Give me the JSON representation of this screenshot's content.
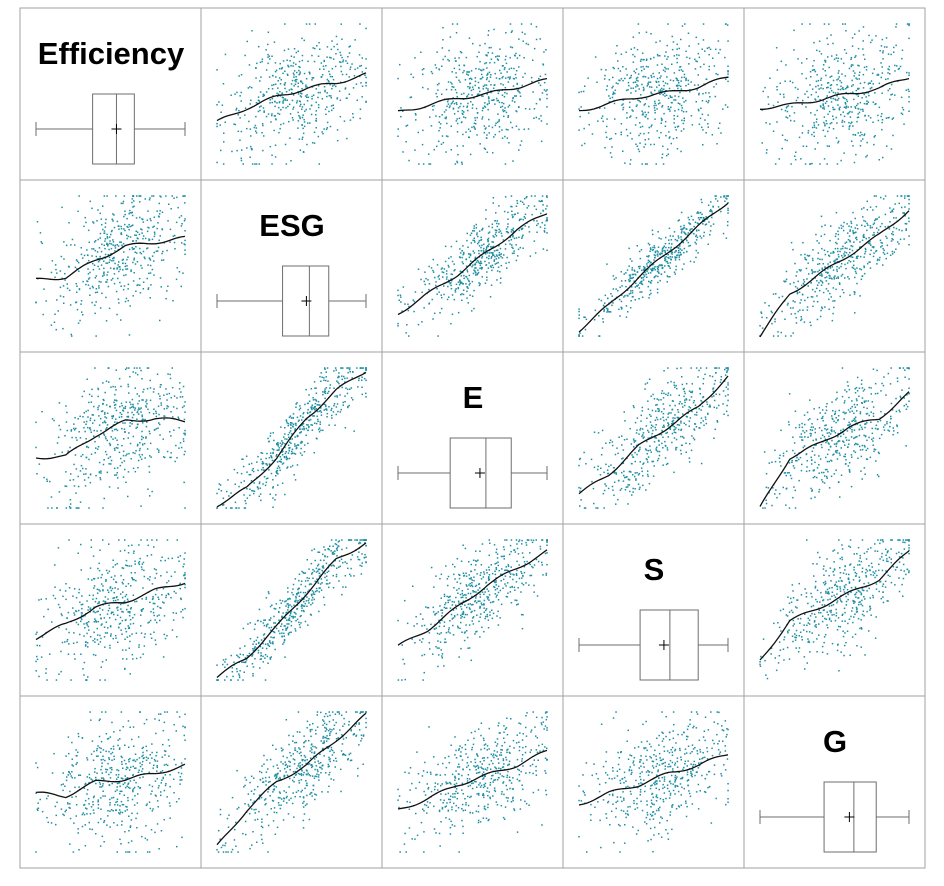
{
  "colors": {
    "point": "#1f8fa3",
    "smooth": "#111111",
    "border": "#a0a0a0",
    "box": "#6e6e6e"
  },
  "chart_data": {
    "type": "scatter",
    "layout": "scatterplot-matrix",
    "variables": [
      "Efficiency",
      "ESG",
      "E",
      "S",
      "G"
    ],
    "diagonal": "boxplot",
    "smoother": "loess",
    "grid": false,
    "value_range": [
      0,
      1
    ],
    "boxplots": [
      {
        "variable": "Efficiency",
        "min": 0.0,
        "q1": 0.38,
        "median": 0.54,
        "q3": 0.66,
        "max": 1.0,
        "mean": 0.54
      },
      {
        "variable": "ESG",
        "min": 0.0,
        "q1": 0.44,
        "median": 0.62,
        "q3": 0.75,
        "max": 1.0,
        "mean": 0.6
      },
      {
        "variable": "E",
        "min": 0.0,
        "q1": 0.35,
        "median": 0.59,
        "q3": 0.76,
        "max": 1.0,
        "mean": 0.55
      },
      {
        "variable": "S",
        "min": 0.0,
        "q1": 0.41,
        "median": 0.61,
        "q3": 0.8,
        "max": 1.0,
        "mean": 0.57
      },
      {
        "variable": "G",
        "min": 0.0,
        "q1": 0.43,
        "median": 0.63,
        "q3": 0.78,
        "max": 1.0,
        "mean": 0.6
      }
    ],
    "panels": [
      {
        "row": "Efficiency",
        "col": "ESG",
        "spread": 0.22,
        "smooth": [
          [
            0.0,
            0.3
          ],
          [
            0.2,
            0.4
          ],
          [
            0.4,
            0.48
          ],
          [
            0.6,
            0.54
          ],
          [
            0.8,
            0.58
          ],
          [
            1.0,
            0.64
          ]
        ]
      },
      {
        "row": "Efficiency",
        "col": "E",
        "spread": 0.22,
        "smooth": [
          [
            0.0,
            0.37
          ],
          [
            0.2,
            0.42
          ],
          [
            0.4,
            0.47
          ],
          [
            0.6,
            0.5
          ],
          [
            0.8,
            0.55
          ],
          [
            1.0,
            0.6
          ]
        ]
      },
      {
        "row": "Efficiency",
        "col": "S",
        "spread": 0.22,
        "smooth": [
          [
            0.0,
            0.38
          ],
          [
            0.2,
            0.43
          ],
          [
            0.4,
            0.48
          ],
          [
            0.6,
            0.51
          ],
          [
            0.8,
            0.55
          ],
          [
            1.0,
            0.62
          ]
        ]
      },
      {
        "row": "Efficiency",
        "col": "G",
        "spread": 0.22,
        "smooth": [
          [
            0.0,
            0.4
          ],
          [
            0.2,
            0.42
          ],
          [
            0.4,
            0.46
          ],
          [
            0.6,
            0.5
          ],
          [
            0.8,
            0.54
          ],
          [
            1.0,
            0.62
          ]
        ]
      },
      {
        "row": "ESG",
        "col": "Efficiency",
        "spread": 0.21,
        "smooth": [
          [
            0.0,
            0.4
          ],
          [
            0.2,
            0.42
          ],
          [
            0.4,
            0.54
          ],
          [
            0.6,
            0.64
          ],
          [
            0.8,
            0.67
          ],
          [
            1.0,
            0.7
          ]
        ]
      },
      {
        "row": "ESG",
        "col": "E",
        "spread": 0.12,
        "smooth": [
          [
            0.0,
            0.16
          ],
          [
            0.2,
            0.3
          ],
          [
            0.4,
            0.44
          ],
          [
            0.6,
            0.6
          ],
          [
            0.8,
            0.76
          ],
          [
            1.0,
            0.88
          ]
        ]
      },
      {
        "row": "ESG",
        "col": "S",
        "spread": 0.09,
        "smooth": [
          [
            0.0,
            0.04
          ],
          [
            0.2,
            0.22
          ],
          [
            0.4,
            0.42
          ],
          [
            0.6,
            0.6
          ],
          [
            0.8,
            0.78
          ],
          [
            1.0,
            0.96
          ]
        ]
      },
      {
        "row": "ESG",
        "col": "G",
        "spread": 0.15,
        "smooth": [
          [
            0.0,
            0.0
          ],
          [
            0.2,
            0.3
          ],
          [
            0.4,
            0.44
          ],
          [
            0.6,
            0.58
          ],
          [
            0.8,
            0.72
          ],
          [
            1.0,
            0.9
          ]
        ]
      },
      {
        "row": "E",
        "col": "Efficiency",
        "spread": 0.22,
        "smooth": [
          [
            0.0,
            0.36
          ],
          [
            0.2,
            0.37
          ],
          [
            0.4,
            0.52
          ],
          [
            0.6,
            0.62
          ],
          [
            0.8,
            0.64
          ],
          [
            1.0,
            0.62
          ]
        ]
      },
      {
        "row": "E",
        "col": "ESG",
        "spread": 0.12,
        "smooth": [
          [
            0.0,
            0.02
          ],
          [
            0.2,
            0.14
          ],
          [
            0.4,
            0.36
          ],
          [
            0.6,
            0.64
          ],
          [
            0.8,
            0.84
          ],
          [
            1.0,
            0.98
          ]
        ]
      },
      {
        "row": "E",
        "col": "S",
        "spread": 0.16,
        "smooth": [
          [
            0.0,
            0.1
          ],
          [
            0.2,
            0.24
          ],
          [
            0.4,
            0.44
          ],
          [
            0.6,
            0.58
          ],
          [
            0.8,
            0.72
          ],
          [
            1.0,
            0.94
          ]
        ]
      },
      {
        "row": "E",
        "col": "G",
        "spread": 0.18,
        "smooth": [
          [
            0.0,
            0.0
          ],
          [
            0.2,
            0.36
          ],
          [
            0.4,
            0.46
          ],
          [
            0.6,
            0.58
          ],
          [
            0.8,
            0.64
          ],
          [
            1.0,
            0.82
          ]
        ]
      },
      {
        "row": "S",
        "col": "Efficiency",
        "spread": 0.22,
        "smooth": [
          [
            0.0,
            0.3
          ],
          [
            0.2,
            0.4
          ],
          [
            0.4,
            0.52
          ],
          [
            0.6,
            0.56
          ],
          [
            0.8,
            0.64
          ],
          [
            1.0,
            0.7
          ]
        ]
      },
      {
        "row": "S",
        "col": "ESG",
        "spread": 0.1,
        "smooth": [
          [
            0.0,
            0.02
          ],
          [
            0.2,
            0.16
          ],
          [
            0.4,
            0.38
          ],
          [
            0.6,
            0.62
          ],
          [
            0.8,
            0.86
          ],
          [
            1.0,
            0.98
          ]
        ]
      },
      {
        "row": "S",
        "col": "E",
        "spread": 0.16,
        "smooth": [
          [
            0.0,
            0.24
          ],
          [
            0.2,
            0.36
          ],
          [
            0.4,
            0.52
          ],
          [
            0.6,
            0.68
          ],
          [
            0.8,
            0.8
          ],
          [
            1.0,
            0.92
          ]
        ]
      },
      {
        "row": "S",
        "col": "G",
        "spread": 0.18,
        "smooth": [
          [
            0.0,
            0.14
          ],
          [
            0.2,
            0.42
          ],
          [
            0.4,
            0.52
          ],
          [
            0.6,
            0.62
          ],
          [
            0.8,
            0.72
          ],
          [
            1.0,
            0.92
          ]
        ]
      },
      {
        "row": "G",
        "col": "Efficiency",
        "spread": 0.22,
        "smooth": [
          [
            0.0,
            0.42
          ],
          [
            0.2,
            0.4
          ],
          [
            0.4,
            0.5
          ],
          [
            0.6,
            0.52
          ],
          [
            0.8,
            0.56
          ],
          [
            1.0,
            0.62
          ]
        ]
      },
      {
        "row": "G",
        "col": "ESG",
        "spread": 0.15,
        "smooth": [
          [
            0.0,
            0.04
          ],
          [
            0.2,
            0.3
          ],
          [
            0.4,
            0.5
          ],
          [
            0.6,
            0.62
          ],
          [
            0.8,
            0.8
          ],
          [
            1.0,
            0.98
          ]
        ]
      },
      {
        "row": "G",
        "col": "E",
        "spread": 0.18,
        "smooth": [
          [
            0.0,
            0.3
          ],
          [
            0.2,
            0.38
          ],
          [
            0.4,
            0.48
          ],
          [
            0.6,
            0.55
          ],
          [
            0.8,
            0.62
          ],
          [
            1.0,
            0.72
          ]
        ]
      },
      {
        "row": "G",
        "col": "S",
        "spread": 0.18,
        "smooth": [
          [
            0.0,
            0.34
          ],
          [
            0.2,
            0.42
          ],
          [
            0.4,
            0.48
          ],
          [
            0.6,
            0.56
          ],
          [
            0.8,
            0.62
          ],
          [
            1.0,
            0.7
          ]
        ]
      }
    ]
  }
}
